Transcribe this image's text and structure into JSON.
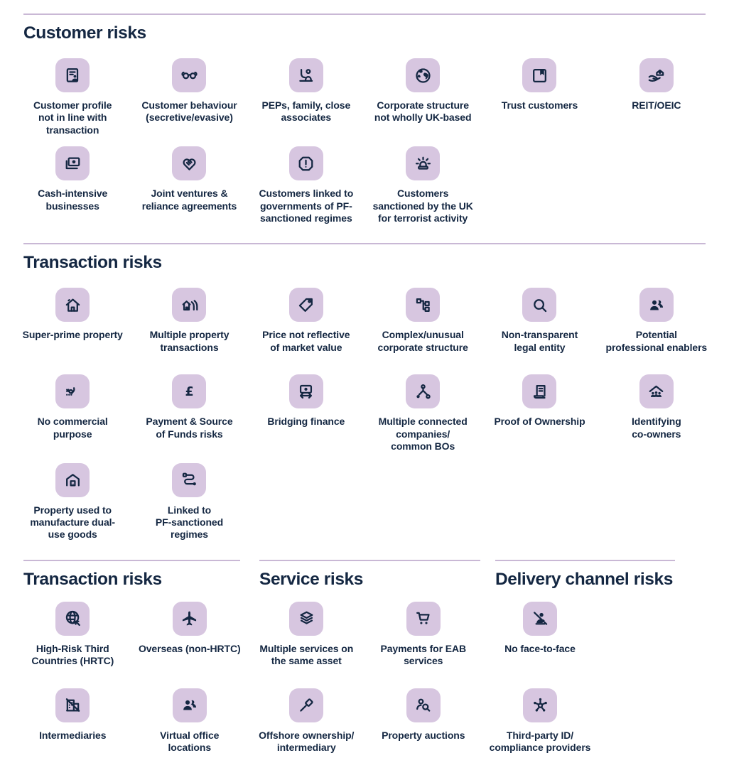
{
  "colors": {
    "background": "#ffffff",
    "tile_background": "#d7c6e0",
    "ink_navy": "#142742",
    "divider_purple": "#c9b8d5"
  },
  "sections": [
    {
      "title": "Customer risks",
      "items": [
        {
          "label": "Customer profile\nnot in line with\ntransaction",
          "icon": "document-person"
        },
        {
          "label": "Customer behaviour\n(secretive/evasive)",
          "icon": "mask"
        },
        {
          "label": "PEPs, family, close\nassociates",
          "icon": "person-hand-up"
        },
        {
          "label": "Corporate structure\nnot wholly UK-based",
          "icon": "globe"
        },
        {
          "label": "Trust customers",
          "icon": "box-bookmark"
        },
        {
          "label": "REIT/OEIC",
          "icon": "hand-house"
        },
        {
          "label": "Cash-intensive\nbusinesses",
          "icon": "banknotes"
        },
        {
          "label": "Joint ventures &\nreliance agreements",
          "icon": "handshake"
        },
        {
          "label": "Customers linked to\ngovernments of PF-\nsanctioned regimes",
          "icon": "octagon-exclamation"
        },
        {
          "label": "Customers\nsanctioned by the UK\nfor terrorist activity",
          "icon": "siren"
        }
      ]
    },
    {
      "title": "Transaction risks",
      "items": [
        {
          "label": "Super-prime property",
          "icon": "house"
        },
        {
          "label": "Multiple property\ntransactions",
          "icon": "houses-multi"
        },
        {
          "label": "Price not reflective\nof market value",
          "icon": "tag"
        },
        {
          "label": "Complex/unusual\ncorporate structure",
          "icon": "org-chart"
        },
        {
          "label": "Non-transparent\nlegal entity",
          "icon": "magnifier"
        },
        {
          "label": "Potential\nprofessional enablers",
          "icon": "people-two"
        },
        {
          "label": "No commercial\npurpose",
          "icon": "signature-x"
        },
        {
          "label": "Payment & Source\nof Funds risks",
          "icon": "pound"
        },
        {
          "label": "Bridging finance",
          "icon": "note-arrows"
        },
        {
          "label": "Multiple connected\ncompanies/\ncommon BOs",
          "icon": "branch-nodes"
        },
        {
          "label": "Proof of Ownership",
          "icon": "scroll"
        },
        {
          "label": "Identifying\nco-owners",
          "icon": "house-people"
        },
        {
          "label": "Property used to\nmanufacture dual-\nuse goods",
          "icon": "warehouse"
        },
        {
          "label": "Linked to\nPF-sanctioned\nregimes",
          "icon": "route"
        }
      ]
    }
  ],
  "bottom_sections": [
    {
      "title": "Transaction risks",
      "items": [
        {
          "label": "High-Risk Third\nCountries (HRTC)",
          "icon": "globe-arrow"
        },
        {
          "label": "Overseas (non-HRTC)",
          "icon": "plane"
        },
        {
          "label": "Intermediaries",
          "icon": "building-slash"
        },
        {
          "label": "Virtual office\nlocations",
          "icon": "people-two"
        }
      ]
    },
    {
      "title": "Service risks",
      "items": [
        {
          "label": "Multiple services on\nthe same asset",
          "icon": "layers"
        },
        {
          "label": "Payments for EAB\nservices",
          "icon": "cart"
        },
        {
          "label": "Offshore ownership/\nintermediary",
          "icon": "gavel"
        },
        {
          "label": "Property auctions",
          "icon": "person-search"
        }
      ]
    },
    {
      "title": "Delivery channel risks",
      "items": [
        {
          "label": "No face-to-face",
          "icon": "person-slash"
        },
        {
          "label": "Third-party ID/\ncompliance providers",
          "icon": "hub-network"
        }
      ]
    }
  ]
}
